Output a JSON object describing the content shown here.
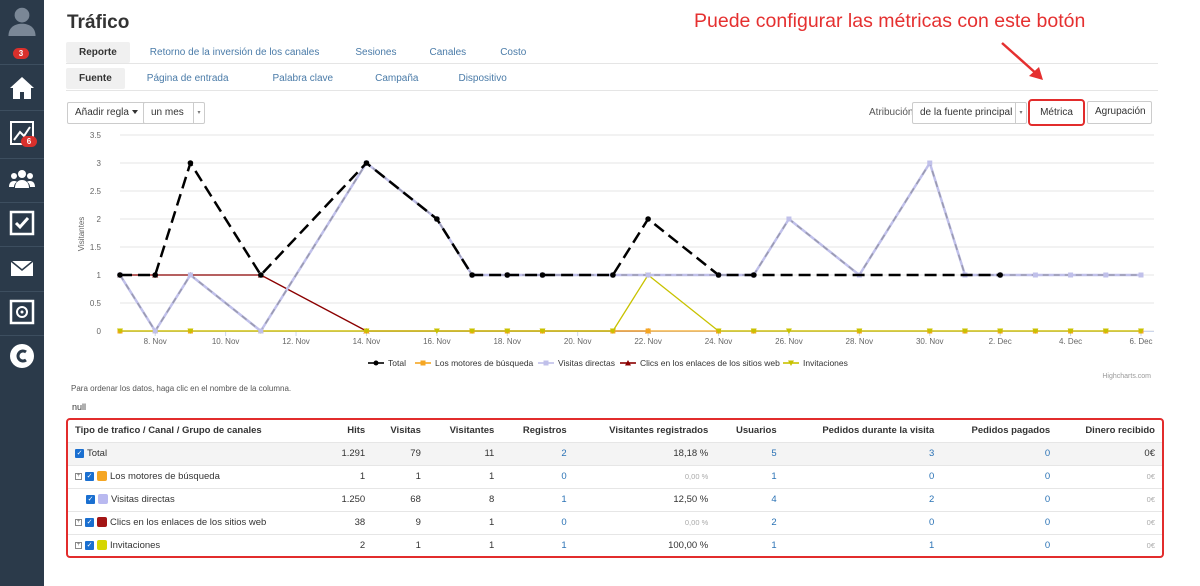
{
  "sidebar": {
    "badge_reports": "3",
    "badge_stats": "6"
  },
  "page": {
    "title": "Tráfico"
  },
  "annotation": "Puede configurar las métricas con este botón",
  "tabs_main": [
    "Reporte",
    "Retorno de la inversión de los canales",
    "Sesiones",
    "Canales",
    "Costo"
  ],
  "tabs_sub": [
    "Fuente",
    "Página de entrada",
    "Palabra clave",
    "Campaña",
    "Dispositivo"
  ],
  "controls": {
    "add_rule": "Añadir regla",
    "period": "un mes",
    "attribution_label": "Atribución",
    "attribution_value": "de la fuente principal",
    "metric_btn": "Métrica",
    "grouping_btn": "Agrupación"
  },
  "chart_data": {
    "type": "line",
    "ylabel": "Visitantes",
    "ylim": [
      0,
      3.5
    ],
    "yticks": [
      "0",
      "0.5",
      "1",
      "1.5",
      "2",
      "2.5",
      "3",
      "3.5"
    ],
    "xtick_labels": [
      "8. Nov",
      "10. Nov",
      "12. Nov",
      "14. Nov",
      "16. Nov",
      "18. Nov",
      "20. Nov",
      "22. Nov",
      "24. Nov",
      "26. Nov",
      "28. Nov",
      "30. Nov",
      "2. Dec",
      "4. Dec",
      "6. Dec"
    ],
    "series": [
      {
        "name": "Total",
        "color": "#000000",
        "values": [
          1,
          1,
          3,
          null,
          1,
          null,
          null,
          3,
          null,
          2,
          1,
          1,
          1,
          null,
          1,
          2,
          null,
          1,
          1,
          null,
          null,
          null,
          null,
          null,
          null,
          1,
          null,
          null,
          null,
          null
        ]
      },
      {
        "name": "Los motores de búsqueda",
        "color": "#f5a623",
        "values": [
          0,
          0,
          0,
          null,
          0,
          null,
          null,
          0,
          null,
          null,
          0,
          0,
          0,
          null,
          0,
          0,
          null,
          0,
          0,
          null,
          null,
          0,
          null,
          0,
          0,
          0,
          0,
          0,
          0,
          0
        ]
      },
      {
        "name": "Visitas directas",
        "color": "#c0c0ea",
        "values": [
          1,
          0,
          1,
          null,
          0,
          null,
          null,
          3,
          null,
          2,
          1,
          1,
          1,
          null,
          1,
          1,
          null,
          1,
          1,
          2,
          null,
          1,
          null,
          3,
          1,
          1,
          1,
          1,
          1,
          1
        ]
      },
      {
        "name": "Clics en los enlaces de los sitios web",
        "color": "#8b0000",
        "values": [
          1,
          1,
          1,
          null,
          1,
          null,
          null,
          0,
          null,
          null,
          null,
          null,
          null,
          null,
          null,
          0,
          null,
          null,
          null,
          null,
          null,
          null,
          null,
          null,
          null,
          null,
          null,
          null,
          null,
          null
        ]
      },
      {
        "name": "Invitaciones",
        "color": "#c8c200",
        "values": [
          0,
          0,
          0,
          null,
          0,
          null,
          null,
          0,
          null,
          0,
          0,
          0,
          0,
          null,
          0,
          1,
          null,
          0,
          0,
          0,
          null,
          0,
          null,
          0,
          0,
          0,
          0,
          0,
          0,
          0
        ]
      }
    ],
    "credit": "Highcharts.com"
  },
  "hint": "Para ordenar los datos, haga clic en el nombre de la columna.",
  "null_text": "null",
  "table": {
    "headers": [
      "Tipo de trafico / Canal / Grupo de canales",
      "Hits",
      "Visitas",
      "Visitantes",
      "Registros",
      "Visitantes registrados",
      "Usuarios",
      "Pedidos durante la visita",
      "Pedidos pagados",
      "Dinero recibido"
    ],
    "rows": [
      {
        "name": "Total",
        "hits": "1.291",
        "visits": "79",
        "visitors": "11",
        "regs": "2",
        "regvis": "18,18 %",
        "users": "5",
        "orders": "3",
        "paid": "0",
        "money": "0€"
      },
      {
        "name": "Los motores de búsqueda",
        "hits": "1",
        "visits": "1",
        "visitors": "1",
        "regs": "0",
        "regvis": "0,00 %",
        "users": "1",
        "orders": "0",
        "paid": "0",
        "money": "0€"
      },
      {
        "name": "Visitas directas",
        "hits": "1.250",
        "visits": "68",
        "visitors": "8",
        "regs": "1",
        "regvis": "12,50 %",
        "users": "4",
        "orders": "2",
        "paid": "0",
        "money": "0€"
      },
      {
        "name": "Clics en los enlaces de los sitios web",
        "hits": "38",
        "visits": "9",
        "visitors": "1",
        "regs": "0",
        "regvis": "0,00 %",
        "users": "2",
        "orders": "0",
        "paid": "0",
        "money": "0€"
      },
      {
        "name": "Invitaciones",
        "hits": "2",
        "visits": "1",
        "visitors": "1",
        "regs": "1",
        "regvis": "100,00 %",
        "users": "1",
        "orders": "1",
        "paid": "0",
        "money": "0€"
      }
    ]
  }
}
